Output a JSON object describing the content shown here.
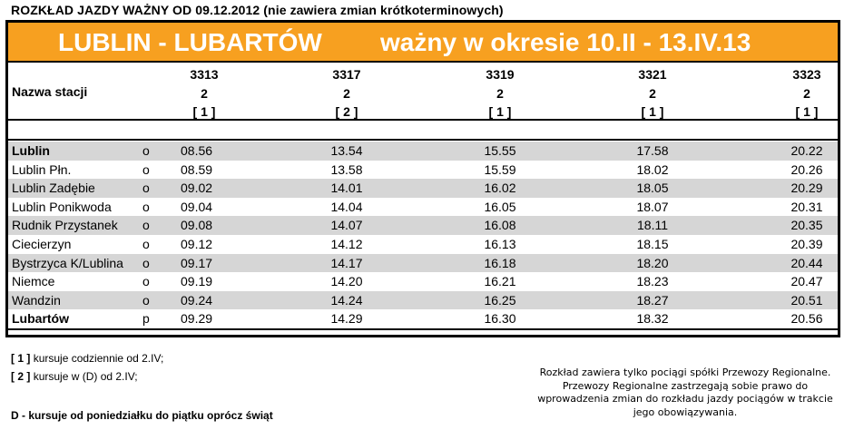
{
  "header": {
    "title": "ROZKŁAD JAZDY WAŻNY OD 09.12.2012 (nie zawiera zmian krótkoterminowych)"
  },
  "route": {
    "name": "LUBLIN - LUBARTÓW",
    "validity": "ważny w okresie 10.II - 13.IV.13",
    "bar_color": "#f7a020"
  },
  "table": {
    "station_header": "Nazwa stacji",
    "trains": [
      {
        "number": "3313",
        "class": "2",
        "note": "[ 1 ]"
      },
      {
        "number": "3317",
        "class": "2",
        "note": "[ 2 ]"
      },
      {
        "number": "3319",
        "class": "2",
        "note": "[ 1 ]"
      },
      {
        "number": "3321",
        "class": "2",
        "note": "[ 1 ]"
      },
      {
        "number": "3323",
        "class": "2",
        "note": "[ 1 ]"
      }
    ],
    "rows": [
      {
        "station": "Lublin",
        "code": "o",
        "times": [
          "08.56",
          "13.54",
          "15.55",
          "17.58",
          "20.22"
        ]
      },
      {
        "station": "Lublin Płn.",
        "code": "o",
        "times": [
          "08.59",
          "13.58",
          "15.59",
          "18.02",
          "20.26"
        ]
      },
      {
        "station": "Lublin Zadębie",
        "code": "o",
        "times": [
          "09.02",
          "14.01",
          "16.02",
          "18.05",
          "20.29"
        ]
      },
      {
        "station": "Lublin Ponikwoda",
        "code": "o",
        "times": [
          "09.04",
          "14.04",
          "16.05",
          "18.07",
          "20.31"
        ]
      },
      {
        "station": "Rudnik Przystanek",
        "code": "o",
        "times": [
          "09.08",
          "14.07",
          "16.08",
          "18.11",
          "20.35"
        ]
      },
      {
        "station": "Ciecierzyn",
        "code": "o",
        "times": [
          "09.12",
          "14.12",
          "16.13",
          "18.15",
          "20.39"
        ]
      },
      {
        "station": "Bystrzyca K/Lublina",
        "code": "o",
        "times": [
          "09.17",
          "14.17",
          "16.18",
          "18.20",
          "20.44"
        ]
      },
      {
        "station": "Niemce",
        "code": "o",
        "times": [
          "09.19",
          "14.20",
          "16.21",
          "18.23",
          "20.47"
        ]
      },
      {
        "station": "Wandzin",
        "code": "o",
        "times": [
          "09.24",
          "14.24",
          "16.25",
          "18.27",
          "20.51"
        ]
      },
      {
        "station": "Lubartów",
        "code": "p",
        "times": [
          "09.29",
          "14.29",
          "16.30",
          "18.32",
          "20.56"
        ]
      }
    ]
  },
  "notes": [
    {
      "mark": "[ 1 ]",
      "text": "kursuje codziennie od 2.IV;"
    },
    {
      "mark": "[ 2 ]",
      "text": "kursuje w (D) od 2.IV;"
    }
  ],
  "legend": {
    "d": "D - kursuje od poniedziałku do piątku oprócz świąt"
  },
  "disclaimer": [
    "Rozkład zawiera tylko pociągi spółki Przewozy Regionalne.",
    "Przewozy Regionalne zastrzegają sobie prawo do",
    "wprowadzenia zmian do rozkładu jazdy pociągów w trakcie",
    "jego obowiązywania."
  ]
}
